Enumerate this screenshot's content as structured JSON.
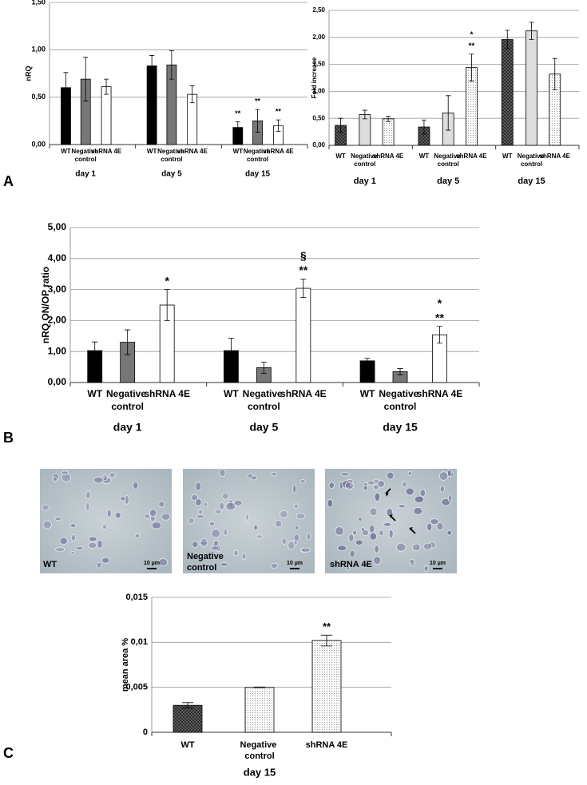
{
  "panels": [
    "A",
    "B",
    "C"
  ],
  "images": [
    {
      "label": "WT",
      "scale": "10 µm"
    },
    {
      "label": "Negative control",
      "scale": "10 µm"
    },
    {
      "label": "shRNA 4E",
      "scale": "10 µm"
    }
  ],
  "chart_data": [
    {
      "type": "bar",
      "y_label": "nRQ",
      "categories": [
        "day 1",
        "day 5",
        "day 15"
      ],
      "series": [
        {
          "name": "WT",
          "color": "#000000",
          "values": [
            0.6,
            0.83,
            0.18
          ],
          "errors": [
            0.16,
            0.11,
            0.06
          ],
          "significance": [
            null,
            null,
            [
              "**"
            ]
          ]
        },
        {
          "name": "Negative control",
          "color": "#777777",
          "values": [
            0.69,
            0.84,
            0.25
          ],
          "errors": [
            0.23,
            0.15,
            0.12
          ],
          "significance": [
            null,
            null,
            [
              "**"
            ]
          ]
        },
        {
          "name": "shRNA 4E",
          "color": "#ffffff",
          "values": [
            0.61,
            0.53,
            0.2
          ],
          "errors": [
            0.08,
            0.09,
            0.06
          ],
          "significance": [
            null,
            null,
            [
              "**"
            ]
          ]
        }
      ],
      "ylim": [
        0,
        1.5
      ],
      "yticks": [
        {
          "value": 0,
          "label": "0,00"
        },
        {
          "value": 0.5,
          "label": "0,50"
        },
        {
          "value": 1,
          "label": "1,00"
        },
        {
          "value": 1.5,
          "label": "1,50"
        }
      ],
      "grid": true
    },
    {
      "type": "bar",
      "y_label": "Fold increase",
      "categories": [
        "day 1",
        "day 5",
        "day 15"
      ],
      "series": [
        {
          "name": "WT",
          "color": "#555555",
          "pattern": "crosshatch",
          "values": [
            0.37,
            0.34,
            1.96
          ],
          "errors": [
            0.13,
            0.13,
            0.17
          ],
          "significance": [
            null,
            null,
            null
          ]
        },
        {
          "name": "Negative control",
          "color": "#dddddd",
          "values": [
            0.57,
            0.6,
            2.12
          ],
          "errors": [
            0.08,
            0.32,
            0.16
          ],
          "significance": [
            null,
            null,
            null
          ]
        },
        {
          "name": "shRNA 4E",
          "color": "#ffffff",
          "pattern": "dots",
          "values": [
            0.49,
            1.44,
            1.32
          ],
          "errors": [
            0.05,
            0.25,
            0.29
          ],
          "significance": [
            null,
            [
              "*",
              "**"
            ],
            null
          ]
        }
      ],
      "ylim": [
        0,
        2.5
      ],
      "yticks": [
        {
          "value": 0,
          "label": "0,00"
        },
        {
          "value": 0.5,
          "label": "0,50"
        },
        {
          "value": 1,
          "label": "1,00"
        },
        {
          "value": 1.5,
          "label": "1,50"
        },
        {
          "value": 2,
          "label": "2,00"
        },
        {
          "value": 2.5,
          "label": "2,50"
        }
      ],
      "grid": true
    },
    {
      "type": "bar",
      "y_label": "nRQ ON/OP ratio",
      "categories": [
        "day 1",
        "day 5",
        "day 15"
      ],
      "series": [
        {
          "name": "WT",
          "color": "#000000",
          "values": [
            1.03,
            1.03,
            0.7
          ],
          "errors": [
            0.28,
            0.4,
            0.08
          ],
          "significance": [
            null,
            null,
            null
          ]
        },
        {
          "name": "Negative control",
          "color": "#777777",
          "values": [
            1.3,
            0.48,
            0.35
          ],
          "errors": [
            0.4,
            0.18,
            0.1
          ],
          "significance": [
            null,
            null,
            null
          ]
        },
        {
          "name": "shRNA 4E",
          "color": "#ffffff",
          "values": [
            2.5,
            3.04,
            1.54
          ],
          "errors": [
            0.5,
            0.3,
            0.27
          ],
          "significance": [
            [
              "*"
            ],
            [
              "§",
              "**"
            ],
            [
              "*",
              "**"
            ]
          ]
        }
      ],
      "ylim": [
        0,
        5
      ],
      "yticks": [
        {
          "value": 0,
          "label": "0,00"
        },
        {
          "value": 1,
          "label": "1,00"
        },
        {
          "value": 2,
          "label": "2,00"
        },
        {
          "value": 3,
          "label": "3,00"
        },
        {
          "value": 4,
          "label": "4,00"
        },
        {
          "value": 5,
          "label": "5,00"
        }
      ],
      "grid": true
    },
    {
      "type": "bar",
      "y_label": "mean area %",
      "categories": [
        "day 15"
      ],
      "series": [
        {
          "name": "WT",
          "color": "#444444",
          "pattern": "crosshatch",
          "values": [
            0.003
          ],
          "errors": [
            0.0003
          ],
          "significance": [
            null
          ]
        },
        {
          "name": "Negative control",
          "color": "#eeeeee",
          "pattern": "dots",
          "values": [
            0.005
          ],
          "errors": [
            3e-05
          ],
          "significance": [
            null
          ]
        },
        {
          "name": "shRNA 4E",
          "color": "#ffffff",
          "pattern": "dots",
          "values": [
            0.0102
          ],
          "errors": [
            0.0006
          ],
          "significance": [
            [
              "**"
            ]
          ]
        }
      ],
      "ylim": [
        0,
        0.015
      ],
      "yticks": [
        0,
        {
          "value": 0.005,
          "label": "0,005"
        },
        {
          "value": 0.01,
          "label": "0,01"
        },
        {
          "value": 0.015,
          "label": "0,015"
        }
      ],
      "grid": true
    }
  ]
}
